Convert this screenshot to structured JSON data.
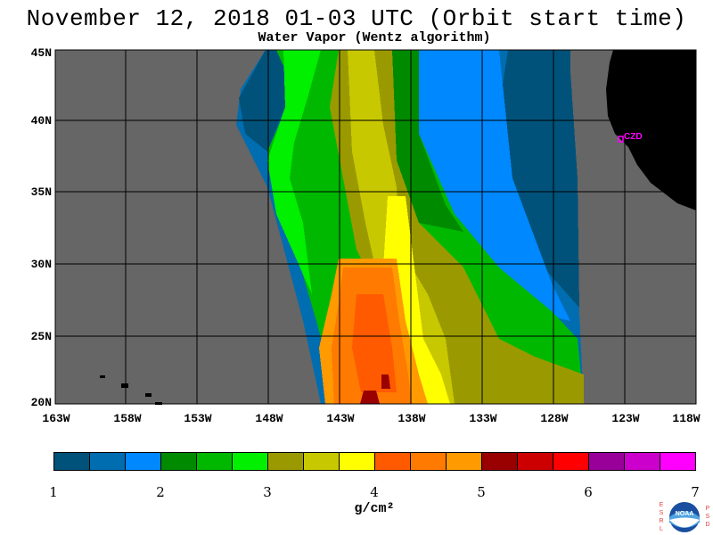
{
  "title": "November 12, 2018  01-03 UTC  (Orbit start time)",
  "subtitle": "Water Vapor (Wentz algorithm)",
  "map": {
    "lat_labels": [
      "45N",
      "40N",
      "35N",
      "30N",
      "25N",
      "20N"
    ],
    "lon_labels": [
      "163W",
      "158W",
      "153W",
      "148W",
      "143W",
      "138W",
      "133W",
      "128W",
      "123W",
      "118W"
    ],
    "station_label": "CZD",
    "colors": {
      "background_gray": "#666666",
      "land": "#000000",
      "station": "#ff00ff"
    }
  },
  "colorbar": {
    "ticks": [
      "1",
      "2",
      "3",
      "4",
      "5",
      "6",
      "7"
    ],
    "unit": "g/cm²",
    "colors": [
      "#00527a",
      "#006db0",
      "#0088ff",
      "#008a00",
      "#00b800",
      "#00f000",
      "#9a9a00",
      "#c8c800",
      "#ffff00",
      "#ff5a00",
      "#ff7a00",
      "#ff9a00",
      "#990000",
      "#cc0000",
      "#ff0000",
      "#990099",
      "#cc00cc",
      "#ff00ff"
    ]
  },
  "logo": {
    "left_text": "ESRL",
    "right_text": "PSD",
    "center_text": "NOAA"
  }
}
